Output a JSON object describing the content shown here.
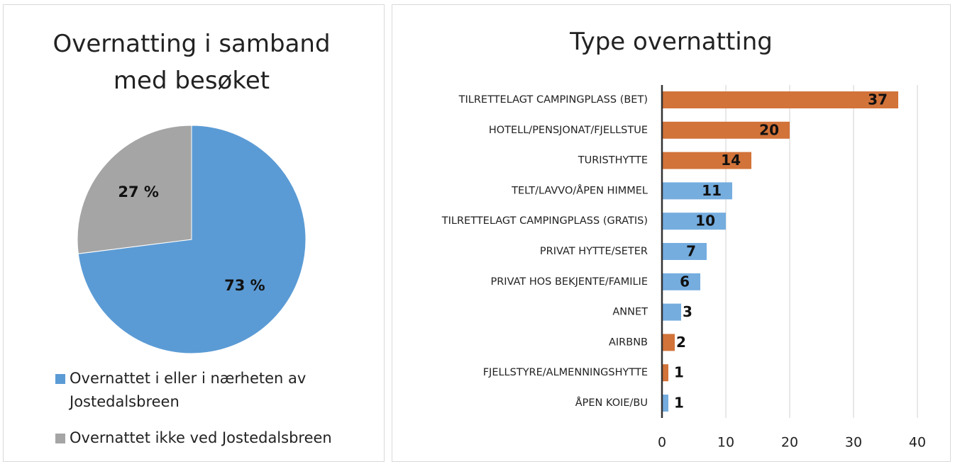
{
  "chart_data": [
    {
      "type": "pie",
      "title": "Overnatting i samband med besøket",
      "categories": [
        "Overnattet i eller i nærheten av Jostedalsbreen",
        "Overnattet ikke ved Jostedalsbreen"
      ],
      "values": [
        73,
        27
      ],
      "value_labels": [
        "73 %",
        "27 %"
      ],
      "colors": [
        "#5b9bd5",
        "#a5a5a5"
      ],
      "legend": "bottom"
    },
    {
      "type": "hbar",
      "title": "Type overnatting",
      "categories": [
        "TILRETTELAGT CAMPINGPLASS (BET)",
        "HOTELL/PENSJONAT/FJELLSTUE",
        "TURISTHYTTE",
        "TELT/LAVVO/ÅPEN HIMMEL",
        "TILRETTELAGT CAMPINGPLASS (GRATIS)",
        "PRIVAT HYTTE/SETER",
        "PRIVAT HOS BEKJENTE/FAMILIE",
        "ANNET",
        "AIRBNB",
        "FJELLSTYRE/ALMENNINGSHYTTE",
        "ÅPEN KOIE/BU"
      ],
      "values": [
        37,
        20,
        14,
        11,
        10,
        7,
        6,
        3,
        2,
        1,
        1
      ],
      "colors": [
        "#d2733a",
        "#d2733a",
        "#d2733a",
        "#75addf",
        "#75addf",
        "#75addf",
        "#75addf",
        "#75addf",
        "#d2733a",
        "#d2733a",
        "#75addf"
      ],
      "xlim": [
        0,
        40
      ],
      "xticks": [
        0,
        10,
        20,
        30,
        40
      ],
      "grid": true
    }
  ]
}
